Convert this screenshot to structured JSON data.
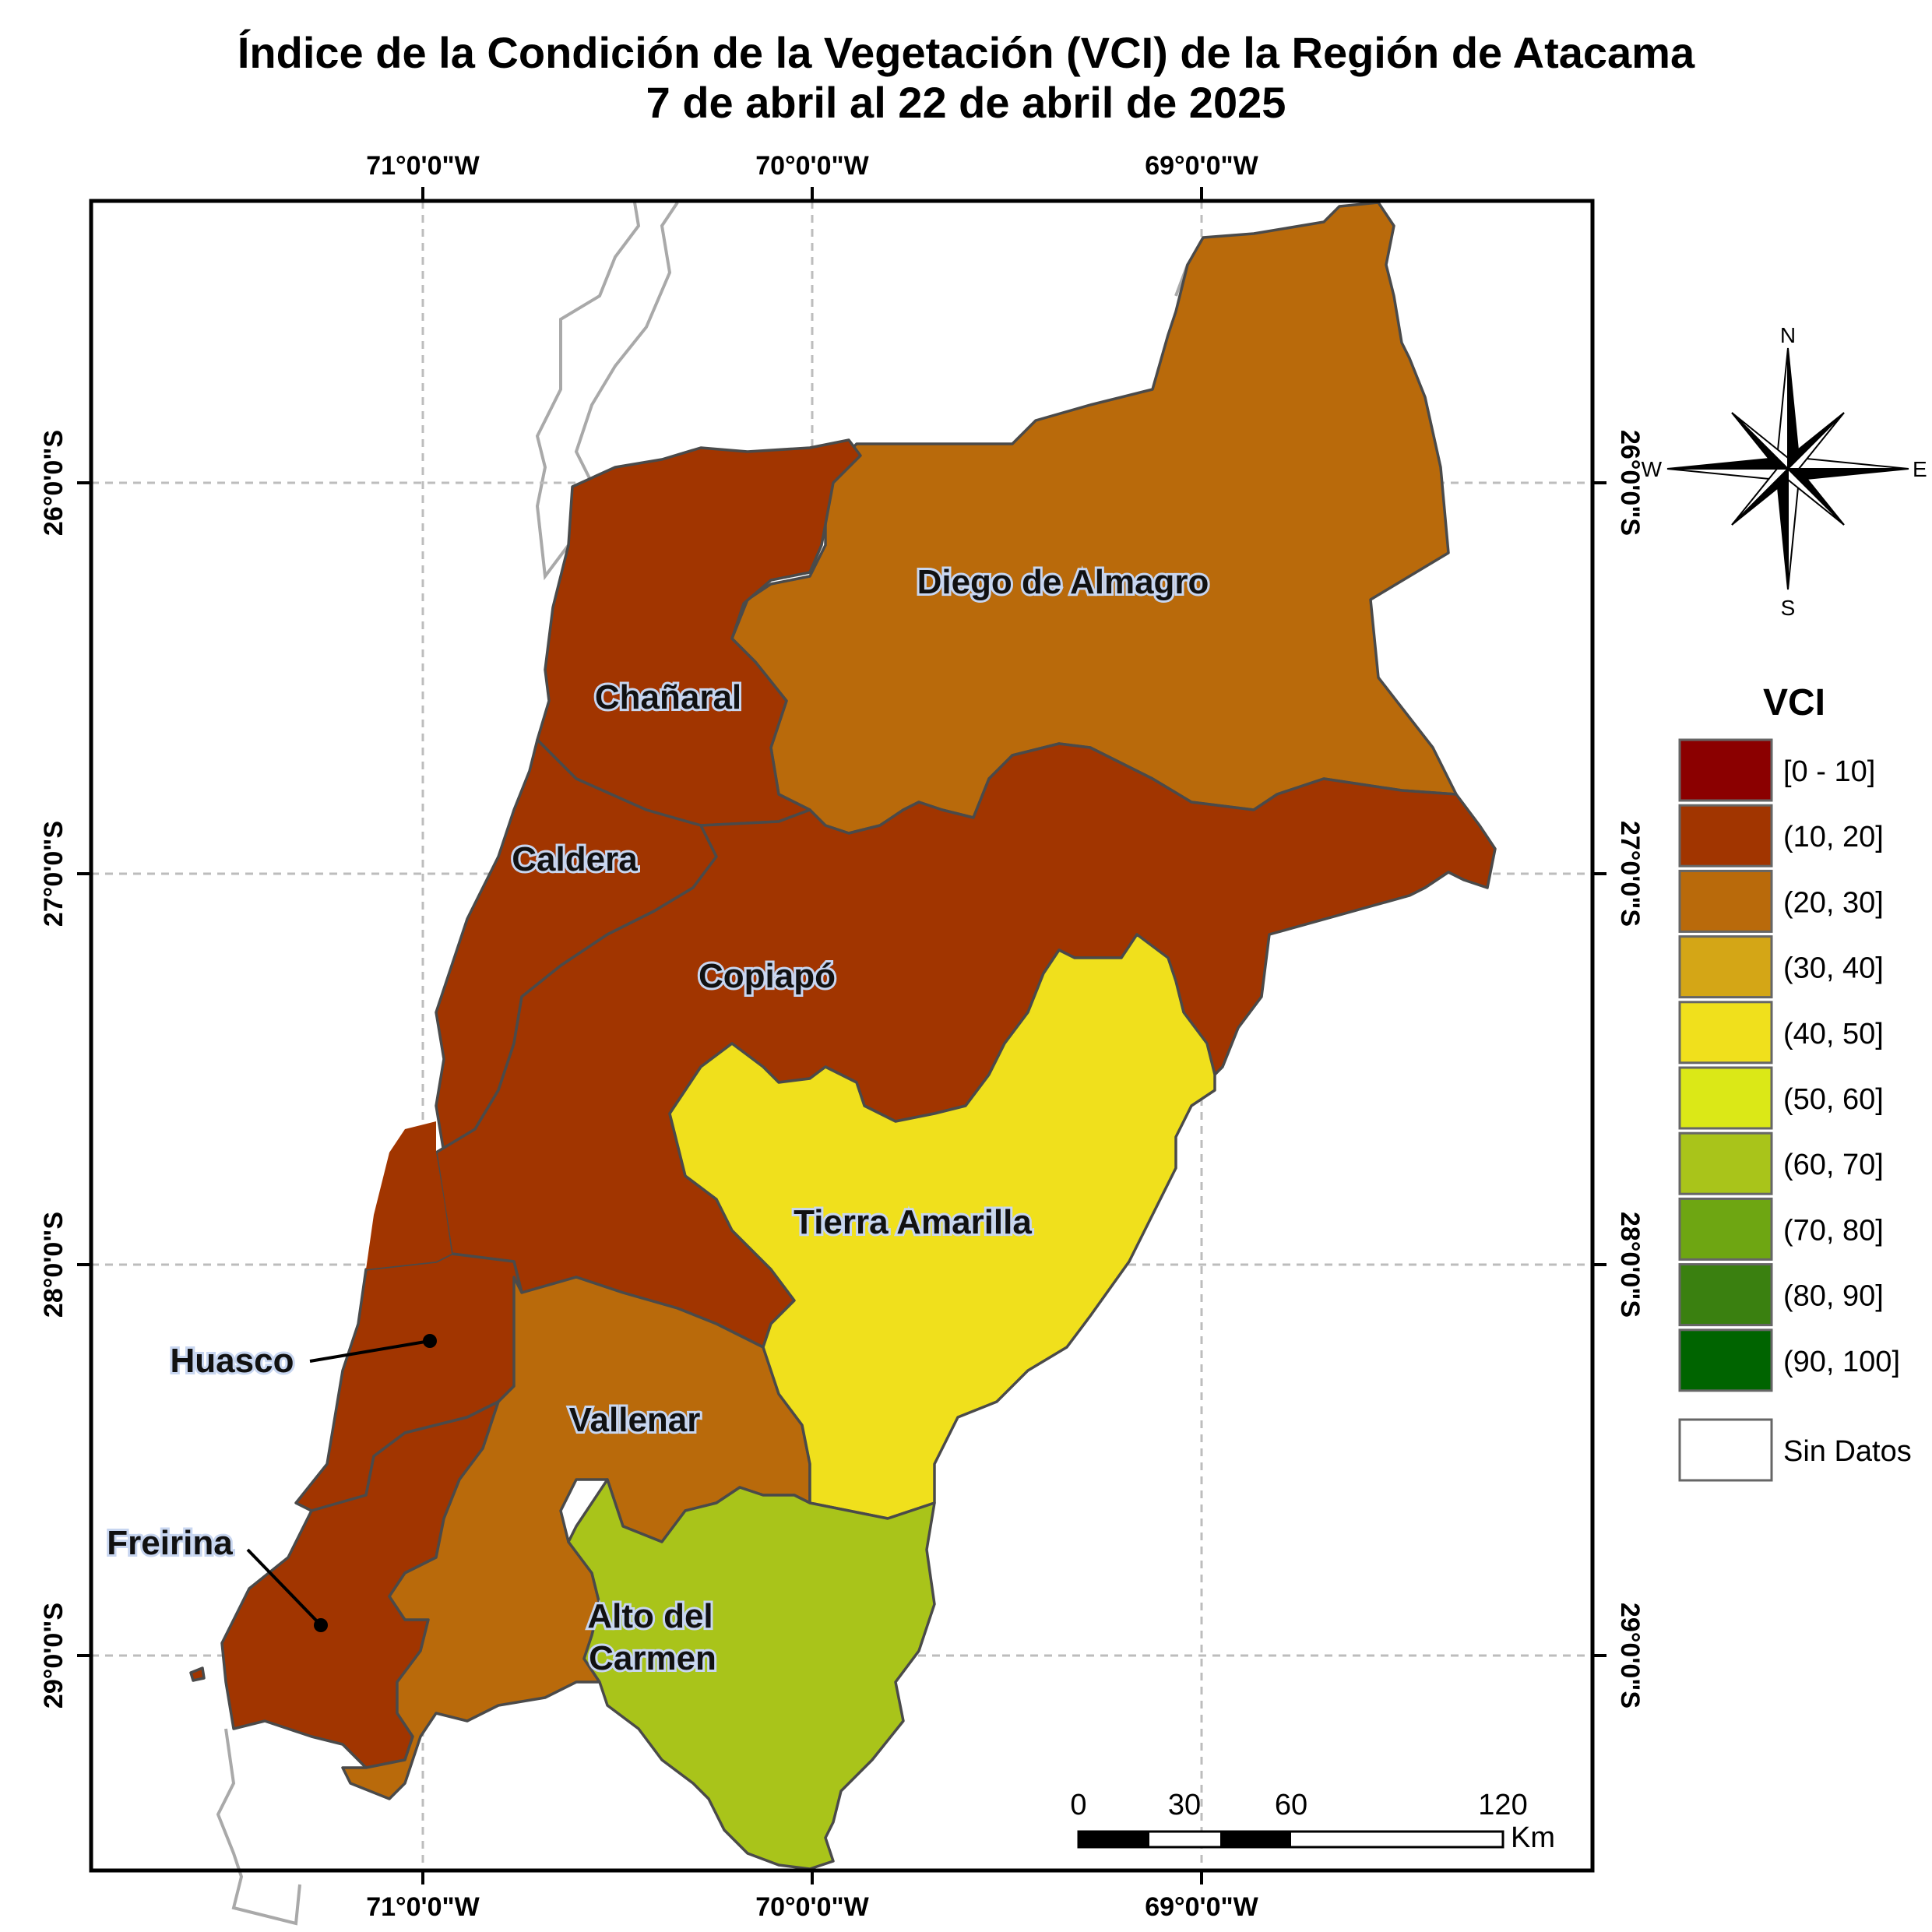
{
  "title": {
    "line1": "Índice de la Condición de la Vegetación (VCI) de la Región de Atacama",
    "line2": "7 de abril al 22 de abril de 2025"
  },
  "axes": {
    "lon_labels": [
      "71°0'0\"W",
      "70°0'0\"W",
      "69°0'0\"W"
    ],
    "lat_labels": [
      "26°0'0\"S",
      "27°0'0\"S",
      "28°0'0\"S",
      "29°0'0\"S"
    ]
  },
  "communes": [
    {
      "name": "Diego de Almagro",
      "vci_class": "(20, 30]"
    },
    {
      "name": "Chañaral",
      "vci_class": "(10, 20]"
    },
    {
      "name": "Caldera",
      "vci_class": "(10, 20]"
    },
    {
      "name": "Copiapó",
      "vci_class": "(10, 20]"
    },
    {
      "name": "Tierra Amarilla",
      "vci_class": "(40, 50]"
    },
    {
      "name": "Huasco",
      "vci_class": "(10, 20]"
    },
    {
      "name": "Vallenar",
      "vci_class": "(20, 30]"
    },
    {
      "name": "Freirina",
      "vci_class": "(10, 20]"
    },
    {
      "name": "Alto del Carmen",
      "vci_class": "(60, 70]"
    }
  ],
  "labels": {
    "diego": "Diego de Almagro",
    "chanaral": "Chañaral",
    "caldera": "Caldera",
    "copiapo": "Copiapó",
    "tierra": "Tierra Amarilla",
    "huasco": "Huasco",
    "vallenar": "Vallenar",
    "freirina": "Freirina",
    "alto1": "Alto del",
    "alto2": "Carmen"
  },
  "north_arrow": {
    "n": "N",
    "s": "S",
    "e": "E",
    "w": "W"
  },
  "legend": {
    "title": "VCI",
    "classes": [
      {
        "label": "[0 - 10]",
        "color": "#8b0000"
      },
      {
        "label": "(10, 20]",
        "color": "#a13500"
      },
      {
        "label": "(20, 30]",
        "color": "#b96a0b"
      },
      {
        "label": "(30, 40]",
        "color": "#d4a616"
      },
      {
        "label": "(40, 50]",
        "color": "#f0e01c"
      },
      {
        "label": "(50, 60]",
        "color": "#dbe817"
      },
      {
        "label": "(60, 70]",
        "color": "#a9c41a"
      },
      {
        "label": "(70, 80]",
        "color": "#6ea612"
      },
      {
        "label": "(80, 90]",
        "color": "#3a8010"
      },
      {
        "label": "(90, 100]",
        "color": "#006400"
      }
    ],
    "no_data": "Sin Datos"
  },
  "scale_bar": {
    "ticks": [
      "0",
      "30",
      "60",
      "120"
    ],
    "unit": "Km"
  }
}
